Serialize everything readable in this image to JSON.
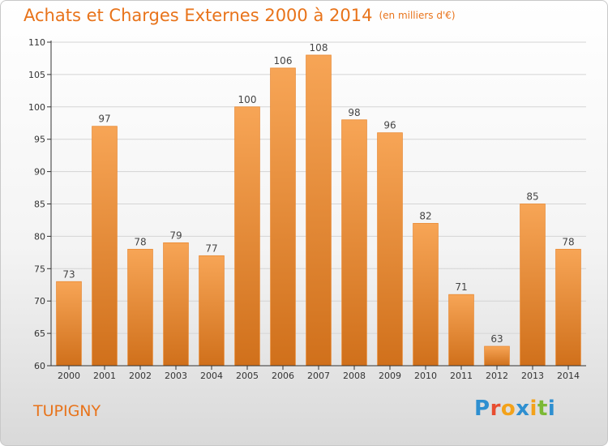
{
  "title": "Achats et Charges Externes 2000 à 2014",
  "unit": "(en milliers d'€)",
  "city": "TUPIGNY",
  "logo": {
    "letters": [
      "P",
      "r",
      "o",
      "x",
      "i",
      "t",
      "i"
    ],
    "colors": [
      "#2e8fd0",
      "#e84d30",
      "#f3a21a",
      "#2e8fd0",
      "#f3a21a",
      "#7cb935",
      "#2e8fd0"
    ]
  },
  "colors": {
    "bar_top": "#f7a556",
    "bar_bottom": "#d0701b",
    "accent": "#e8731a",
    "axis": "#333333"
  },
  "chart_data": {
    "type": "bar",
    "categories": [
      "2000",
      "2001",
      "2002",
      "2003",
      "2004",
      "2005",
      "2006",
      "2007",
      "2008",
      "2009",
      "2010",
      "2011",
      "2012",
      "2013",
      "2014"
    ],
    "values": [
      73,
      97,
      78,
      79,
      77,
      100,
      106,
      108,
      98,
      96,
      82,
      71,
      63,
      85,
      78
    ],
    "ylim": [
      60,
      110
    ],
    "yticks": [
      60,
      65,
      70,
      75,
      80,
      85,
      90,
      95,
      100,
      105,
      110
    ],
    "grid": true,
    "show_value_labels": true
  }
}
